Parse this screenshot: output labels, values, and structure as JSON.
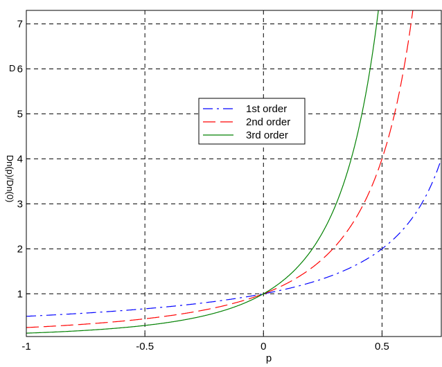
{
  "chart_data": {
    "type": "line",
    "title": "",
    "xlabel": "p",
    "ylabel": "Dn(p)/Dn(0)",
    "ylabel_superscript": "D",
    "xlim": [
      -1,
      0.75
    ],
    "ylim": [
      0.05,
      7.3
    ],
    "xticks": [
      -1,
      -0.5,
      0,
      0.5
    ],
    "xtick_labels": [
      "-1",
      "-0.5",
      "0",
      "0.5"
    ],
    "yticks": [
      1,
      2,
      3,
      4,
      5,
      6,
      7
    ],
    "ytick_labels": [
      "1",
      "2",
      "3",
      "4",
      "5",
      "6",
      "7"
    ],
    "grid": true,
    "legend_position": "center",
    "series": [
      {
        "name": "1st order",
        "color": "#0000ff",
        "style": "dash-dot",
        "formula": "1/(1-p)",
        "x": [
          -1,
          -0.5,
          0,
          0.25,
          0.5,
          0.6,
          0.75
        ],
        "y": [
          0.5,
          0.667,
          1,
          1.333,
          2,
          2.5,
          4
        ]
      },
      {
        "name": "2nd order",
        "color": "#ff0000",
        "style": "dashed",
        "formula": "1/(1-p)^2",
        "x": [
          -1,
          -0.5,
          0,
          0.25,
          0.5,
          0.6,
          0.62
        ],
        "y": [
          0.25,
          0.444,
          1,
          1.778,
          4,
          6.25,
          6.94
        ]
      },
      {
        "name": "3rd order",
        "color": "#008000",
        "style": "solid",
        "formula": "1/(1-p)^3",
        "x": [
          -1,
          -0.5,
          0,
          0.25,
          0.4,
          0.48
        ],
        "y": [
          0.125,
          0.296,
          1,
          2.37,
          4.63,
          7.11
        ]
      }
    ]
  }
}
